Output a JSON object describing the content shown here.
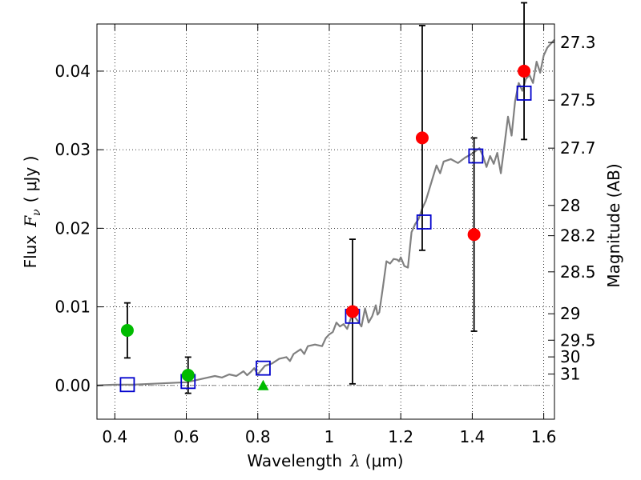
{
  "chart_data": {
    "type": "scatter",
    "title": "",
    "xlabel_text": "Wavelength",
    "xlabel_symbol": "λ",
    "xlabel_unit": "(μm)",
    "ylabel_text": "Flux",
    "ylabel_symbol": "F",
    "ylabel_subscript": "ν",
    "ylabel_unit": "( μJy )",
    "y2label": "Magnitude (AB)",
    "xlim": [
      0.35,
      1.63
    ],
    "ylim": [
      -0.0043,
      0.046
    ],
    "grid": true,
    "x_ticks": [
      0.4,
      0.6,
      0.8,
      1.0,
      1.2,
      1.4,
      1.6
    ],
    "x_tick_labels": [
      "0.4",
      "0.6",
      "0.8",
      "1",
      "1.2",
      "1.4",
      "1.6"
    ],
    "y_ticks": [
      0.0,
      0.01,
      0.02,
      0.03,
      0.04
    ],
    "y_tick_labels": [
      "0.00",
      "0.01",
      "0.02",
      "0.03",
      "0.04"
    ],
    "mag_ticks": [
      "27.3",
      "27.5",
      "27.7",
      "28",
      "28.2",
      "28.5",
      "29",
      "29.5",
      "30",
      "31"
    ],
    "colors": {
      "template": "#808080",
      "model": "#0000cc",
      "detection_red": "#ff0000",
      "detection_green": "#00bb00",
      "errorbar": "#000000"
    },
    "template_sed": {
      "x": [
        0.35,
        0.4,
        0.45,
        0.5,
        0.55,
        0.6,
        0.62,
        0.64,
        0.66,
        0.68,
        0.7,
        0.72,
        0.74,
        0.76,
        0.77,
        0.78,
        0.79,
        0.8,
        0.82,
        0.84,
        0.86,
        0.88,
        0.89,
        0.9,
        0.92,
        0.93,
        0.94,
        0.96,
        0.98,
        0.99,
        1.0,
        1.01,
        1.02,
        1.03,
        1.04,
        1.05,
        1.06,
        1.07,
        1.08,
        1.09,
        1.1,
        1.11,
        1.12,
        1.13,
        1.135,
        1.14,
        1.15,
        1.16,
        1.17,
        1.18,
        1.19,
        1.195,
        1.2,
        1.21,
        1.22,
        1.23,
        1.24,
        1.25,
        1.26,
        1.27,
        1.28,
        1.29,
        1.3,
        1.31,
        1.32,
        1.34,
        1.36,
        1.38,
        1.4,
        1.42,
        1.43,
        1.44,
        1.45,
        1.46,
        1.47,
        1.48,
        1.49,
        1.5,
        1.51,
        1.52,
        1.53,
        1.54,
        1.55,
        1.56,
        1.57,
        1.58,
        1.59,
        1.6,
        1.61,
        1.62,
        1.63
      ],
      "y": [
        0.0,
        0.0001,
        0.0001,
        0.0002,
        0.0003,
        0.0004,
        0.0006,
        0.0008,
        0.001,
        0.0012,
        0.001,
        0.0014,
        0.0012,
        0.0018,
        0.0013,
        0.0017,
        0.0022,
        0.0014,
        0.0025,
        0.0028,
        0.0034,
        0.0036,
        0.0031,
        0.004,
        0.0046,
        0.004,
        0.005,
        0.0052,
        0.005,
        0.006,
        0.0065,
        0.0068,
        0.008,
        0.0075,
        0.0078,
        0.0072,
        0.0085,
        0.0088,
        0.0082,
        0.0075,
        0.0098,
        0.008,
        0.0088,
        0.0102,
        0.009,
        0.0093,
        0.0125,
        0.0158,
        0.0155,
        0.0161,
        0.016,
        0.0158,
        0.0163,
        0.0152,
        0.015,
        0.0195,
        0.0205,
        0.0212,
        0.0225,
        0.0235,
        0.025,
        0.0265,
        0.028,
        0.027,
        0.0285,
        0.0288,
        0.0283,
        0.029,
        0.0295,
        0.0302,
        0.0292,
        0.0278,
        0.0292,
        0.0282,
        0.0296,
        0.027,
        0.0305,
        0.0342,
        0.0318,
        0.0362,
        0.0385,
        0.0375,
        0.039,
        0.0395,
        0.0385,
        0.0412,
        0.0398,
        0.042,
        0.043,
        0.0435,
        0.044
      ]
    },
    "series": [
      {
        "name": "model-fluxes",
        "marker": "square",
        "points": [
          {
            "x": 0.435,
            "y": 0.0001
          },
          {
            "x": 0.605,
            "y": 0.0005
          },
          {
            "x": 0.815,
            "y": 0.0022
          },
          {
            "x": 1.065,
            "y": 0.0088
          },
          {
            "x": 1.265,
            "y": 0.0208
          },
          {
            "x": 1.41,
            "y": 0.0292
          },
          {
            "x": 1.545,
            "y": 0.0372
          }
        ]
      },
      {
        "name": "observed-red",
        "marker": "circle",
        "color": "#ff0000",
        "points": [
          {
            "x": 1.065,
            "y": 0.0094,
            "yerr": 0.0092
          },
          {
            "x": 1.26,
            "y": 0.0315,
            "yerr": 0.0143
          },
          {
            "x": 1.405,
            "y": 0.0192,
            "yerr": 0.0123
          },
          {
            "x": 1.545,
            "y": 0.04,
            "yerr": 0.0087
          }
        ]
      },
      {
        "name": "observed-green",
        "marker": "circle",
        "color": "#00bb00",
        "points": [
          {
            "x": 0.435,
            "y": 0.007,
            "yerr": 0.0035
          },
          {
            "x": 0.605,
            "y": 0.0013,
            "yerr": 0.0023
          }
        ]
      },
      {
        "name": "observed-green-limit",
        "marker": "triangle",
        "color": "#00bb00",
        "points": [
          {
            "x": 0.815,
            "y": 0.0
          }
        ]
      }
    ]
  }
}
